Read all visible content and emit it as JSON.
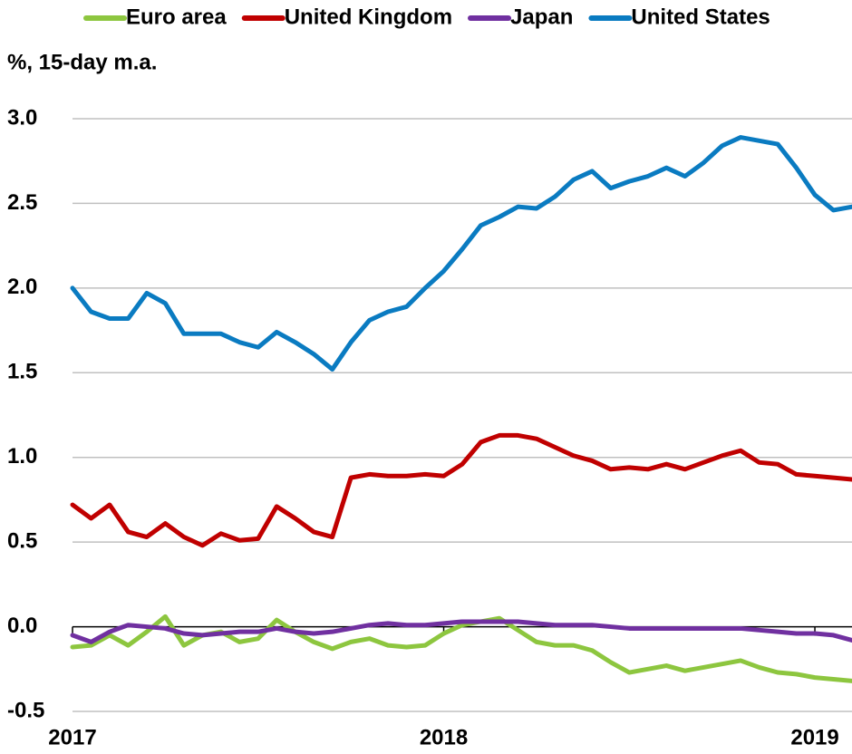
{
  "chart_data": {
    "type": "line",
    "y_label": "%, 15-day m.a.",
    "x": [
      2017.0,
      2017.05,
      2017.1,
      2017.15,
      2017.2,
      2017.25,
      2017.3,
      2017.35,
      2017.4,
      2017.45,
      2017.5,
      2017.55,
      2017.6,
      2017.65,
      2017.7,
      2017.75,
      2017.8,
      2017.85,
      2017.9,
      2017.95,
      2018.0,
      2018.05,
      2018.1,
      2018.15,
      2018.2,
      2018.25,
      2018.3,
      2018.35,
      2018.4,
      2018.45,
      2018.5,
      2018.55,
      2018.6,
      2018.65,
      2018.7,
      2018.75,
      2018.8,
      2018.85,
      2018.9,
      2018.95,
      2019.0,
      2019.05,
      2019.1
    ],
    "series": [
      {
        "name": "Euro area",
        "color": "#8dc63f",
        "values": [
          -0.12,
          -0.11,
          -0.05,
          -0.11,
          -0.03,
          0.06,
          -0.11,
          -0.05,
          -0.03,
          -0.09,
          -0.07,
          0.04,
          -0.03,
          -0.09,
          -0.13,
          -0.09,
          -0.07,
          -0.11,
          -0.12,
          -0.11,
          -0.04,
          0.01,
          0.03,
          0.05,
          -0.02,
          -0.09,
          -0.11,
          -0.11,
          -0.14,
          -0.21,
          -0.27,
          -0.25,
          -0.23,
          -0.26,
          -0.24,
          -0.22,
          -0.2,
          -0.24,
          -0.27,
          -0.28,
          -0.3,
          -0.31,
          -0.32
        ]
      },
      {
        "name": "United Kingdom",
        "color": "#c00000",
        "values": [
          0.72,
          0.64,
          0.72,
          0.56,
          0.53,
          0.61,
          0.53,
          0.48,
          0.55,
          0.51,
          0.52,
          0.71,
          0.64,
          0.56,
          0.53,
          0.88,
          0.9,
          0.89,
          0.89,
          0.9,
          0.89,
          0.96,
          1.09,
          1.13,
          1.13,
          1.11,
          1.06,
          1.01,
          0.98,
          0.93,
          0.94,
          0.93,
          0.96,
          0.93,
          0.97,
          1.01,
          1.04,
          0.97,
          0.96,
          0.9,
          0.89,
          0.88,
          0.87
        ]
      },
      {
        "name": "Japan",
        "color": "#7030a0",
        "values": [
          -0.05,
          -0.09,
          -0.03,
          0.01,
          0.0,
          -0.01,
          -0.04,
          -0.05,
          -0.04,
          -0.03,
          -0.03,
          -0.01,
          -0.03,
          -0.04,
          -0.03,
          -0.01,
          0.01,
          0.02,
          0.01,
          0.01,
          0.02,
          0.03,
          0.03,
          0.03,
          0.03,
          0.02,
          0.01,
          0.01,
          0.01,
          0.0,
          -0.01,
          -0.01,
          -0.01,
          -0.01,
          -0.01,
          -0.01,
          -0.01,
          -0.02,
          -0.03,
          -0.04,
          -0.04,
          -0.05,
          -0.08
        ]
      },
      {
        "name": "United States",
        "color": "#0a7bc1",
        "values": [
          2.0,
          1.86,
          1.82,
          1.82,
          1.97,
          1.91,
          1.73,
          1.73,
          1.73,
          1.68,
          1.65,
          1.74,
          1.68,
          1.61,
          1.52,
          1.68,
          1.81,
          1.86,
          1.89,
          2.0,
          2.1,
          2.23,
          2.37,
          2.42,
          2.48,
          2.47,
          2.54,
          2.64,
          2.69,
          2.59,
          2.63,
          2.66,
          2.71,
          2.66,
          2.74,
          2.84,
          2.89,
          2.87,
          2.85,
          2.71,
          2.55,
          2.46,
          2.48
        ]
      }
    ],
    "xlim": [
      2017,
      2019.1
    ],
    "xticks": [
      2017,
      2018,
      2019
    ],
    "ylim": [
      -0.5,
      3
    ],
    "yticks": [
      {
        "value": 3,
        "label": "3.0"
      },
      2.5,
      {
        "value": 2,
        "label": "2.0"
      },
      1.5,
      {
        "value": 1,
        "label": "1.0"
      },
      0.5,
      {
        "value": 0,
        "label": "0.0"
      },
      -0.5
    ],
    "grid": true,
    "legend": "top"
  }
}
